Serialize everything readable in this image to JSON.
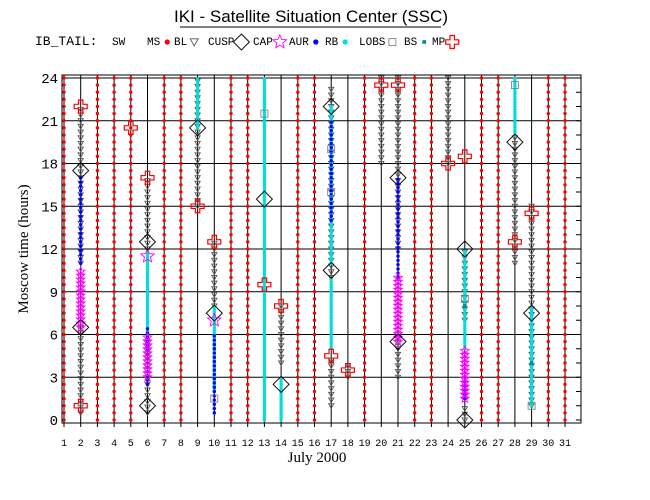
{
  "chart_data": {
    "type": "scatter",
    "title": "IKI - Satellite Situation Center (SSC)",
    "subtitle": "IB_TAIL:",
    "xlabel": "July   2000",
    "ylabel": "Moscow time (hours)",
    "xlim": [
      1,
      31
    ],
    "ylim": [
      0,
      24
    ],
    "x_ticks": [
      1,
      2,
      3,
      4,
      5,
      6,
      7,
      8,
      9,
      10,
      11,
      12,
      13,
      14,
      15,
      16,
      17,
      18,
      19,
      20,
      21,
      22,
      23,
      24,
      25,
      26,
      27,
      28,
      29,
      30,
      31
    ],
    "y_ticks": [
      0,
      3,
      6,
      9,
      12,
      15,
      18,
      21,
      24
    ],
    "grid": true,
    "legend_position": "top",
    "colors": {
      "SW": "#ff0000",
      "MS": "#ff0000",
      "BL": "#555555",
      "CUSP": "#e0b000",
      "CAP": "#ff00ff",
      "AUR": "#0000ff",
      "RB": "#00dddd",
      "LOBS": "#777777",
      "BS": "#008888",
      "MP": "#ff0000"
    },
    "legend": [
      {
        "key": "SW",
        "label": "SW",
        "symbol": "none"
      },
      {
        "key": "MS",
        "label": "MS",
        "symbol": "dot"
      },
      {
        "key": "BL",
        "label": "BL",
        "symbol": "triangle"
      },
      {
        "key": "CUSP",
        "label": "CUSP",
        "symbol": "diamond"
      },
      {
        "key": "CAP",
        "label": "CAP",
        "symbol": "star"
      },
      {
        "key": "AUR",
        "label": "AUR",
        "symbol": "dot"
      },
      {
        "key": "RB",
        "label": "RB",
        "symbol": "dot"
      },
      {
        "key": "LOBS",
        "label": "LOBS",
        "symbol": "square"
      },
      {
        "key": "BS",
        "label": "BS",
        "symbol": "smallsquare"
      },
      {
        "key": "MP",
        "label": "MP",
        "symbol": "cross"
      }
    ],
    "satellite_days": [
      2,
      6,
      9,
      10,
      13,
      14,
      17,
      18,
      20,
      21,
      24,
      25,
      28,
      29
    ],
    "series": [
      {
        "name": "BL",
        "marker": "triangle",
        "segments": [
          {
            "x": 2,
            "y": [
              0.5,
              6.5
            ]
          },
          {
            "x": 2,
            "y": [
              11,
              22
            ]
          },
          {
            "x": 6,
            "y": [
              0.5,
              3
            ]
          },
          {
            "x": 6,
            "y": [
              12,
              17
            ]
          },
          {
            "x": 9,
            "y": [
              15,
              24
            ]
          },
          {
            "x": 10,
            "y": [
              8,
              12.5
            ]
          },
          {
            "x": 14,
            "y": [
              4,
              8
            ]
          },
          {
            "x": 17,
            "y": [
              1,
              4.5
            ]
          },
          {
            "x": 17,
            "y": [
              10,
              23.5
            ]
          },
          {
            "x": 18,
            "y": [
              3,
              4
            ]
          },
          {
            "x": 20,
            "y": [
              18,
              24
            ]
          },
          {
            "x": 21,
            "y": [
              3,
              6
            ]
          },
          {
            "x": 21,
            "y": [
              12,
              24
            ]
          },
          {
            "x": 24,
            "y": [
              18,
              24
            ]
          },
          {
            "x": 25,
            "y": [
              0,
              1
            ]
          },
          {
            "x": 25,
            "y": [
              7,
              12
            ]
          },
          {
            "x": 28,
            "y": [
              11,
              20
            ]
          },
          {
            "x": 29,
            "y": [
              1,
              15
            ]
          }
        ]
      },
      {
        "name": "AUR",
        "marker": "dot",
        "segments": [
          {
            "x": 2,
            "y": [
              11,
              17
            ]
          },
          {
            "x": 6,
            "y": [
              2.5,
              6.5
            ]
          },
          {
            "x": 10,
            "y": [
              0.5,
              6
            ]
          },
          {
            "x": 17,
            "y": [
              14,
              21
            ]
          },
          {
            "x": 21,
            "y": [
              10,
              17
            ]
          },
          {
            "x": 25,
            "y": [
              1.5,
              3
            ]
          }
        ]
      },
      {
        "name": "RB",
        "marker": "dot",
        "segments": [
          {
            "x": 6,
            "y": [
              5,
              12
            ]
          },
          {
            "x": 9,
            "y": [
              20.5,
              24
            ]
          },
          {
            "x": 10,
            "y": [
              2,
              8
            ]
          },
          {
            "x": 13,
            "y": [
              0,
              24
            ]
          },
          {
            "x": 14,
            "y": [
              0,
              3
            ]
          },
          {
            "x": 17,
            "y": [
              5,
              10
            ]
          },
          {
            "x": 17,
            "y": [
              11,
              22
            ]
          },
          {
            "x": 25,
            "y": [
              5,
              12
            ]
          },
          {
            "x": 28,
            "y": [
              20,
              24
            ]
          },
          {
            "x": 29,
            "y": [
              1,
              8
            ]
          }
        ]
      },
      {
        "name": "CAP",
        "marker": "star",
        "segments": [
          {
            "x": 2,
            "y": [
              6.5,
              10.5
            ]
          },
          {
            "x": 6,
            "y": [
              3,
              6
            ]
          },
          {
            "x": 21,
            "y": [
              5.5,
              10
            ]
          },
          {
            "x": 25,
            "y": [
              1.5,
              5
            ]
          }
        ],
        "points": [
          {
            "x": 6,
            "y": 11.5
          },
          {
            "x": 10,
            "y": 7
          }
        ]
      },
      {
        "name": "CUSP",
        "marker": "diamond",
        "points": [
          {
            "x": 2,
            "y": 17.5
          },
          {
            "x": 2,
            "y": 6.5
          },
          {
            "x": 6,
            "y": 12.5
          },
          {
            "x": 6,
            "y": 1
          },
          {
            "x": 9,
            "y": 20.5
          },
          {
            "x": 10,
            "y": 7.5
          },
          {
            "x": 13,
            "y": 15.5
          },
          {
            "x": 14,
            "y": 2.5
          },
          {
            "x": 17,
            "y": 22
          },
          {
            "x": 17,
            "y": 10.5
          },
          {
            "x": 21,
            "y": 17
          },
          {
            "x": 21,
            "y": 5.5
          },
          {
            "x": 25,
            "y": 12
          },
          {
            "x": 25,
            "y": 0
          },
          {
            "x": 28,
            "y": 19.5
          },
          {
            "x": 29,
            "y": 7.5
          }
        ]
      },
      {
        "name": "MP",
        "marker": "cross",
        "points": [
          {
            "x": 2,
            "y": 22
          },
          {
            "x": 2,
            "y": 1
          },
          {
            "x": 5,
            "y": 20.5
          },
          {
            "x": 6,
            "y": 17
          },
          {
            "x": 9,
            "y": 15
          },
          {
            "x": 10,
            "y": 12.5
          },
          {
            "x": 13,
            "y": 9.5
          },
          {
            "x": 14,
            "y": 8
          },
          {
            "x": 17,
            "y": 4.5
          },
          {
            "x": 18,
            "y": 3.5
          },
          {
            "x": 20,
            "y": 23.5
          },
          {
            "x": 21,
            "y": 23.5
          },
          {
            "x": 24,
            "y": 18
          },
          {
            "x": 25,
            "y": 18.5
          },
          {
            "x": 28,
            "y": 12.5
          },
          {
            "x": 29,
            "y": 14.5
          }
        ]
      },
      {
        "name": "LOBS",
        "marker": "square",
        "points": [
          {
            "x": 13,
            "y": 21.5
          },
          {
            "x": 17,
            "y": 19
          },
          {
            "x": 17,
            "y": 16
          },
          {
            "x": 10,
            "y": 1.5
          },
          {
            "x": 29,
            "y": 1
          },
          {
            "x": 25,
            "y": 8.5
          },
          {
            "x": 28,
            "y": 23.5
          }
        ]
      },
      {
        "name": "BS",
        "marker": "smallsquare",
        "points": [
          {
            "x": 25,
            "y": 8
          },
          {
            "x": 29,
            "y": 4
          }
        ]
      },
      {
        "name": "MS",
        "marker": "dot",
        "fill_remaining_days": true
      }
    ]
  }
}
